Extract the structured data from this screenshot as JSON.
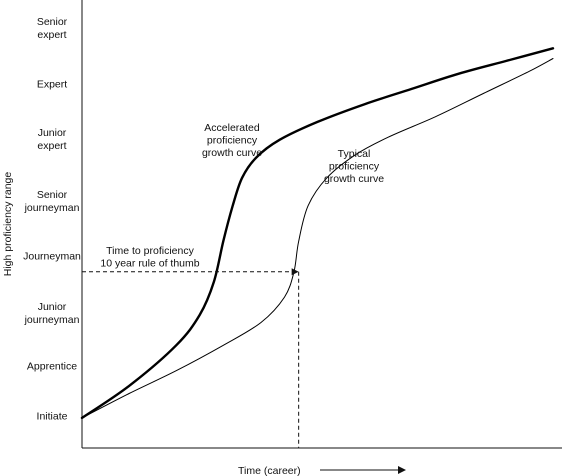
{
  "chart_data": {
    "type": "line",
    "title": "",
    "xlabel": "Time (career)",
    "ylabel": "High proficiency range",
    "y_categories": [
      [
        "Initiate"
      ],
      [
        "Apprentice"
      ],
      [
        "Junior",
        "journeyman"
      ],
      [
        "Journeyman"
      ],
      [
        "Senior",
        "journeyman"
      ],
      [
        "Junior",
        "expert"
      ],
      [
        "Expert"
      ],
      [
        "Senior",
        "expert"
      ]
    ],
    "xlim": [
      0,
      100
    ],
    "ylim": [
      0,
      7.8
    ],
    "grid": false,
    "series": [
      {
        "name_lines": [
          "Accelerated",
          "proficiency",
          "growth curve"
        ],
        "stroke": "thick",
        "points": [
          [
            0,
            0.12
          ],
          [
            10,
            0.75
          ],
          [
            20,
            1.55
          ],
          [
            25,
            2.15
          ],
          [
            28,
            2.8
          ],
          [
            30,
            3.6
          ],
          [
            32,
            4.3
          ],
          [
            34,
            4.85
          ],
          [
            37,
            5.25
          ],
          [
            42,
            5.6
          ],
          [
            50,
            5.95
          ],
          [
            60,
            6.3
          ],
          [
            70,
            6.6
          ],
          [
            80,
            6.9
          ],
          [
            90,
            7.15
          ],
          [
            100,
            7.4
          ]
        ]
      },
      {
        "name_lines": [
          "Typical",
          "proficiency",
          "growth curve"
        ],
        "stroke": "thin",
        "points": [
          [
            0,
            0.12
          ],
          [
            10,
            0.6
          ],
          [
            20,
            1.05
          ],
          [
            30,
            1.55
          ],
          [
            38,
            2.0
          ],
          [
            43,
            2.5
          ],
          [
            45,
            3.0
          ],
          [
            46,
            3.6
          ],
          [
            48,
            4.3
          ],
          [
            52,
            4.85
          ],
          [
            58,
            5.3
          ],
          [
            65,
            5.65
          ],
          [
            75,
            6.05
          ],
          [
            85,
            6.5
          ],
          [
            95,
            6.95
          ],
          [
            100,
            7.2
          ]
        ]
      }
    ],
    "annotations": [
      {
        "lines": [
          "Time to proficiency",
          "10 year rule of thumb"
        ],
        "at": [
          46,
          3.0
        ]
      }
    ]
  }
}
